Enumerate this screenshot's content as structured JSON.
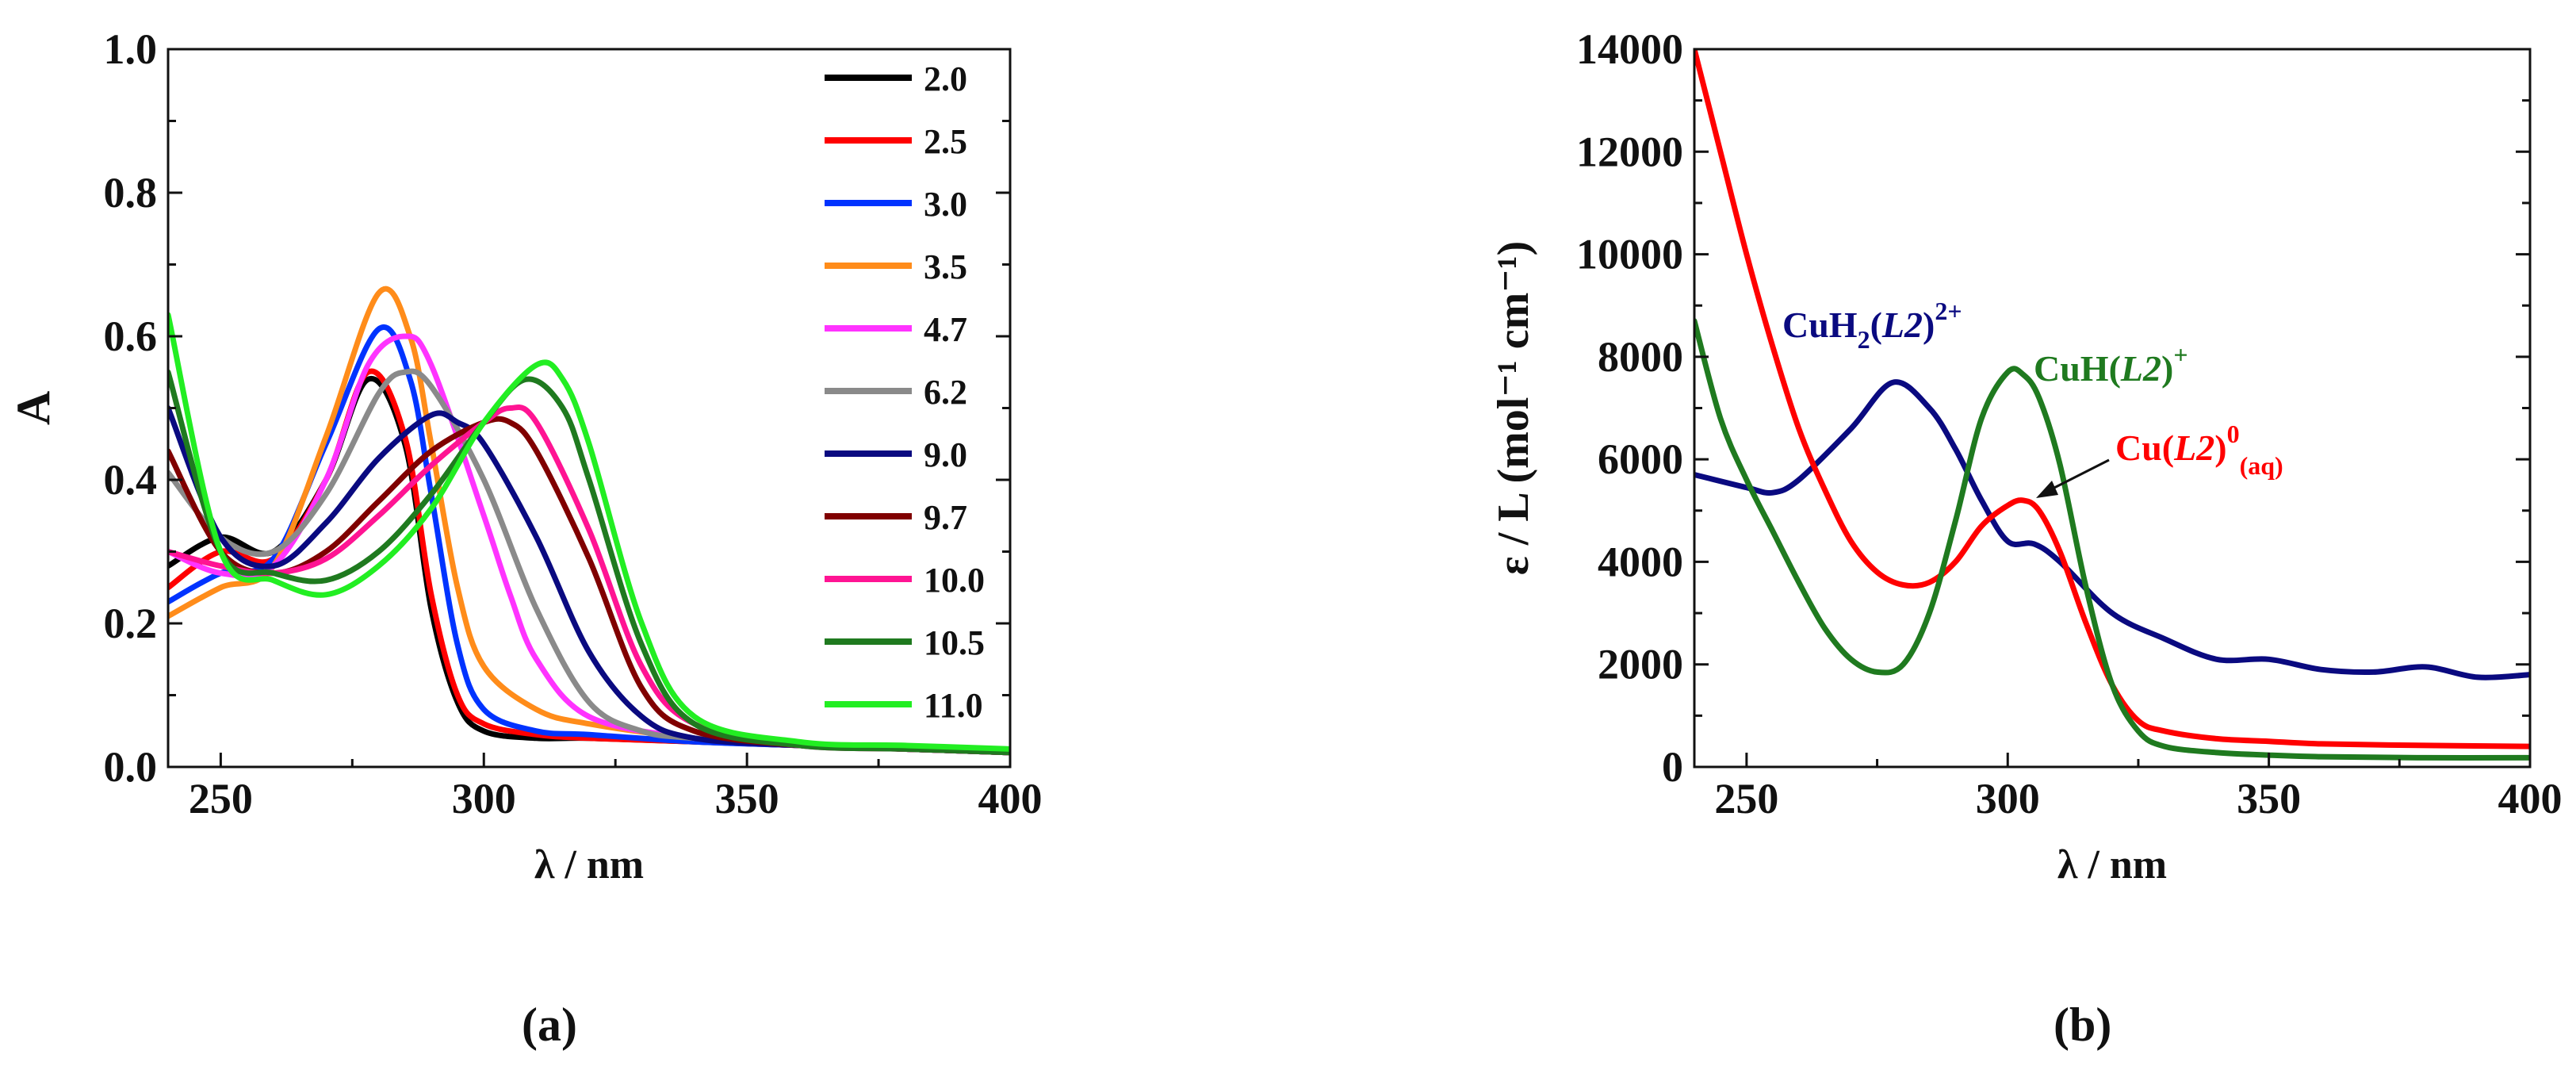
{
  "panel_labels": [
    "(a)",
    "(b)"
  ],
  "chart_data": [
    {
      "type": "line",
      "xlabel": "λ / nm",
      "ylabel": "A",
      "xlim": [
        240,
        400
      ],
      "ylim": [
        0,
        1.0
      ],
      "xticks": [
        "250",
        "300",
        "350",
        "400"
      ],
      "xtick_values": [
        250,
        300,
        350,
        400
      ],
      "yticks": [
        "0.0",
        "0.2",
        "0.4",
        "0.6",
        "0.8",
        "1.0"
      ],
      "ytick_values": [
        0,
        0.2,
        0.4,
        0.6,
        0.8,
        1.0
      ],
      "legend_position": "top-right",
      "series": [
        {
          "name": "2.0",
          "color": "#000000",
          "x": [
            240,
            250,
            260,
            270,
            278,
            285,
            290,
            295,
            300,
            310,
            320,
            340,
            360,
            380,
            400
          ],
          "y": [
            0.28,
            0.32,
            0.3,
            0.4,
            0.54,
            0.45,
            0.22,
            0.09,
            0.05,
            0.04,
            0.04,
            0.035,
            0.03,
            0.025,
            0.02
          ]
        },
        {
          "name": "2.5",
          "color": "#ff0000",
          "x": [
            240,
            250,
            260,
            270,
            278,
            285,
            290,
            295,
            300,
            310,
            320,
            340,
            360,
            380,
            400
          ],
          "y": [
            0.25,
            0.3,
            0.29,
            0.4,
            0.55,
            0.46,
            0.24,
            0.1,
            0.06,
            0.045,
            0.04,
            0.035,
            0.03,
            0.025,
            0.02
          ]
        },
        {
          "name": "3.0",
          "color": "#0033ff",
          "x": [
            240,
            250,
            260,
            270,
            280,
            286,
            290,
            295,
            300,
            310,
            320,
            340,
            360,
            380,
            400
          ],
          "y": [
            0.23,
            0.27,
            0.29,
            0.45,
            0.61,
            0.54,
            0.38,
            0.17,
            0.08,
            0.05,
            0.045,
            0.035,
            0.03,
            0.025,
            0.02
          ]
        },
        {
          "name": "3.5",
          "color": "#ff8c1a",
          "x": [
            240,
            250,
            260,
            270,
            280,
            286,
            290,
            295,
            300,
            310,
            320,
            340,
            360,
            380,
            400
          ],
          "y": [
            0.21,
            0.25,
            0.28,
            0.46,
            0.66,
            0.6,
            0.45,
            0.25,
            0.14,
            0.08,
            0.06,
            0.04,
            0.03,
            0.025,
            0.02
          ]
        },
        {
          "name": "4.7",
          "color": "#ff33ff",
          "x": [
            240,
            250,
            260,
            270,
            278,
            285,
            290,
            300,
            305,
            310,
            320,
            340,
            360,
            380,
            400
          ],
          "y": [
            0.3,
            0.27,
            0.28,
            0.4,
            0.56,
            0.6,
            0.56,
            0.35,
            0.24,
            0.15,
            0.07,
            0.04,
            0.03,
            0.025,
            0.02
          ]
        },
        {
          "name": "6.2",
          "color": "#8a8a8a",
          "x": [
            240,
            250,
            260,
            270,
            280,
            285,
            290,
            300,
            310,
            320,
            330,
            340,
            360,
            380,
            400
          ],
          "y": [
            0.41,
            0.32,
            0.3,
            0.38,
            0.52,
            0.55,
            0.53,
            0.4,
            0.22,
            0.09,
            0.05,
            0.04,
            0.03,
            0.025,
            0.02
          ]
        },
        {
          "name": "9.0",
          "color": "#0a0a80",
          "x": [
            240,
            250,
            260,
            270,
            280,
            290,
            295,
            300,
            310,
            320,
            330,
            340,
            360,
            380,
            400
          ],
          "y": [
            0.5,
            0.32,
            0.28,
            0.34,
            0.43,
            0.49,
            0.48,
            0.45,
            0.32,
            0.16,
            0.07,
            0.04,
            0.03,
            0.025,
            0.02
          ]
        },
        {
          "name": "9.7",
          "color": "#800000",
          "x": [
            240,
            250,
            260,
            270,
            280,
            290,
            300,
            305,
            310,
            320,
            330,
            340,
            360,
            380,
            400
          ],
          "y": [
            0.44,
            0.3,
            0.27,
            0.3,
            0.37,
            0.44,
            0.48,
            0.48,
            0.44,
            0.29,
            0.11,
            0.05,
            0.03,
            0.025,
            0.02
          ]
        },
        {
          "name": "10.0",
          "color": "#ff1493",
          "x": [
            240,
            250,
            260,
            270,
            280,
            290,
            300,
            305,
            310,
            320,
            330,
            340,
            360,
            380,
            400
          ],
          "y": [
            0.3,
            0.28,
            0.27,
            0.29,
            0.35,
            0.42,
            0.48,
            0.5,
            0.48,
            0.33,
            0.14,
            0.06,
            0.03,
            0.025,
            0.02
          ]
        },
        {
          "name": "10.5",
          "color": "#1f7a1f",
          "x": [
            240,
            250,
            260,
            270,
            280,
            290,
            300,
            308,
            315,
            320,
            330,
            340,
            360,
            380,
            400
          ],
          "y": [
            0.55,
            0.3,
            0.27,
            0.26,
            0.3,
            0.38,
            0.48,
            0.54,
            0.5,
            0.4,
            0.17,
            0.06,
            0.03,
            0.025,
            0.02
          ]
        },
        {
          "name": "11.0",
          "color": "#22ee22",
          "x": [
            240,
            250,
            260,
            270,
            280,
            290,
            300,
            310,
            315,
            320,
            330,
            340,
            360,
            380,
            400
          ],
          "y": [
            0.63,
            0.3,
            0.26,
            0.24,
            0.28,
            0.36,
            0.48,
            0.56,
            0.54,
            0.45,
            0.2,
            0.07,
            0.035,
            0.03,
            0.025
          ]
        }
      ]
    },
    {
      "type": "line",
      "xlabel": "λ / nm",
      "ylabel": "ε / L (mol⁻¹ cm⁻¹)",
      "xlim": [
        240,
        400
      ],
      "ylim": [
        0,
        14000
      ],
      "xticks": [
        "250",
        "300",
        "350",
        "400"
      ],
      "xtick_values": [
        250,
        300,
        350,
        400
      ],
      "yticks": [
        "0",
        "2000",
        "4000",
        "6000",
        "8000",
        "10000",
        "12000",
        "14000"
      ],
      "ytick_values": [
        0,
        2000,
        4000,
        6000,
        8000,
        10000,
        12000,
        14000
      ],
      "annotations": {
        "cuh2": {
          "base": "CuH",
          "sub": "2",
          "paren_open": "(",
          "ligand": "L2",
          "paren_close": ")",
          "sup": "2+",
          "color": "#0a0a80"
        },
        "cuh": {
          "base": "CuH(",
          "ligand": "L2",
          "paren_close": ")",
          "sup": "+",
          "color": "#1f7a1f"
        },
        "cu": {
          "base": "Cu(",
          "ligand": "L2",
          "paren_close": ")",
          "sup": "0",
          "sub": "(aq)",
          "color": "#ff0000"
        }
      },
      "series": [
        {
          "name": "CuH2(L2)2+",
          "color": "#0a0a80",
          "x": [
            240,
            250,
            255,
            260,
            270,
            278,
            285,
            290,
            295,
            300,
            305,
            310,
            320,
            330,
            340,
            350,
            360,
            370,
            380,
            390,
            400
          ],
          "y": [
            5700,
            5450,
            5350,
            5600,
            6600,
            7500,
            7000,
            6200,
            5200,
            4400,
            4350,
            4000,
            3000,
            2500,
            2100,
            2100,
            1900,
            1850,
            1950,
            1750,
            1800
          ]
        },
        {
          "name": "Cu(L2)0(aq)",
          "color": "#ff0000",
          "x": [
            240,
            245,
            250,
            255,
            260,
            265,
            270,
            275,
            280,
            285,
            290,
            295,
            300,
            303,
            306,
            310,
            315,
            320,
            325,
            330,
            340,
            350,
            360,
            380,
            400
          ],
          "y": [
            14000,
            12000,
            10000,
            8200,
            6600,
            5400,
            4400,
            3800,
            3550,
            3600,
            4000,
            4700,
            5100,
            5200,
            5000,
            4200,
            2800,
            1600,
            900,
            700,
            550,
            500,
            450,
            420,
            400
          ]
        },
        {
          "name": "CuH(L2)+",
          "color": "#1f7a1f",
          "x": [
            240,
            245,
            250,
            255,
            260,
            265,
            270,
            275,
            280,
            285,
            290,
            295,
            300,
            303,
            306,
            310,
            315,
            320,
            325,
            330,
            340,
            350,
            360,
            380,
            400
          ],
          "y": [
            8700,
            6800,
            5600,
            4600,
            3600,
            2700,
            2100,
            1850,
            2000,
            3000,
            4800,
            6800,
            7700,
            7650,
            7200,
            5900,
            3500,
            1600,
            700,
            400,
            280,
            230,
            200,
            180,
            180
          ]
        }
      ]
    }
  ]
}
